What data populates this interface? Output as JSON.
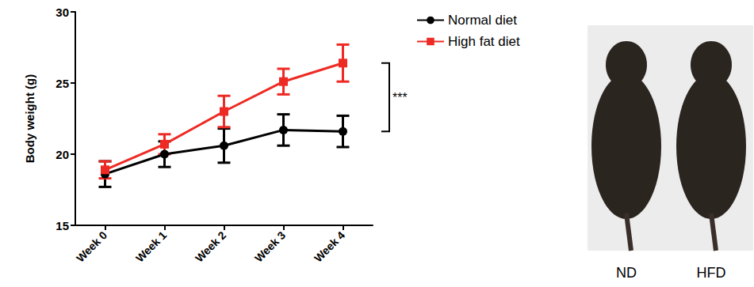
{
  "chart_data": {
    "type": "line",
    "y_label": "Body weight (g)",
    "categories": [
      "Week 0",
      "Week 1",
      "Week 2",
      "Week 3",
      "Week 4"
    ],
    "series": [
      {
        "name": "Normal diet",
        "color": "#000000",
        "marker": "circle",
        "values": [
          18.6,
          20.0,
          20.6,
          21.7,
          21.6
        ],
        "errors": [
          0.9,
          0.9,
          1.2,
          1.1,
          1.1
        ]
      },
      {
        "name": "High fat diet",
        "color": "#ee2a24",
        "marker": "square",
        "values": [
          18.9,
          20.7,
          23.0,
          25.1,
          26.4
        ],
        "errors": [
          0.6,
          0.7,
          1.1,
          0.9,
          1.3
        ]
      }
    ],
    "ylim": [
      15,
      30
    ],
    "yticks": [
      15,
      20,
      25,
      30
    ],
    "grid": false,
    "legend": "upper right",
    "annotations": [
      "***"
    ]
  },
  "photo": {
    "labels": [
      "ND",
      "HFD"
    ]
  }
}
